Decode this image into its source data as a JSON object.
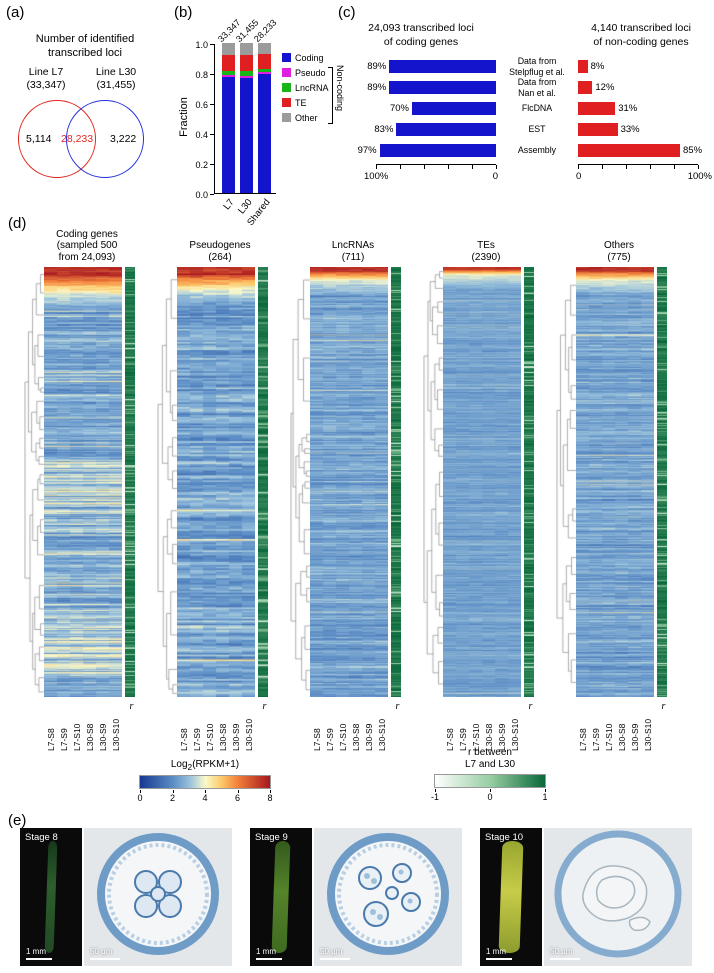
{
  "panel_labels": {
    "a": "(a)",
    "b": "(b)",
    "c": "(c)",
    "d": "(d)",
    "e": "(e)"
  },
  "panel_a": {
    "title": "Number of identified\ntranscribed loci",
    "left_name": "Line L7",
    "left_total": "(33,347)",
    "right_name": "Line L30",
    "right_total": "(31,455)",
    "left_only": "5,114",
    "overlap": "28,233",
    "right_only": "3,222"
  },
  "panel_b": {
    "ylabel": "Fraction",
    "yticks": [
      "1.0",
      "0.8",
      "0.6",
      "0.4",
      "0.2",
      "0.0"
    ],
    "totals": [
      "33,347",
      "31,455",
      "28,233"
    ],
    "xcats": [
      "L7",
      "L30",
      "Shared"
    ],
    "noncoding": "Non-coding"
  },
  "panel_c": {
    "left_title": "24,093 transcribed loci\nof coding genes",
    "right_title": "4,140 transcribed loci\nof non-coding genes",
    "left_axis_left": "100%",
    "left_axis_right": "0",
    "right_axis_left": "0",
    "right_axis_right": "100%"
  },
  "panel_d": {
    "heatmaps": [
      {
        "title": "Coding genes\n(sampled 500\nfrom 24,093)"
      },
      {
        "title": "Pseudogenes\n(264)"
      },
      {
        "title": "LncRNAs\n(711)"
      },
      {
        "title": "TEs\n(2390)"
      },
      {
        "title": "Others\n(775)"
      }
    ],
    "r_label": "r",
    "expr_scale": {
      "prefix": "Log",
      "sub": "2",
      "suffix": "(RPKM+1)",
      "ticks": [
        "0",
        "2",
        "4",
        "6",
        "8"
      ]
    },
    "r_scale": {
      "label": "r between\nL7 and L30",
      "ticks": [
        "-1",
        "0",
        "1"
      ]
    }
  },
  "panel_e": {
    "stages": [
      {
        "name": "Stage 8",
        "spike_scale": "1 mm",
        "section_scale": "50 µm"
      },
      {
        "name": "Stage 9",
        "spike_scale": "1 mm",
        "section_scale": "50 µm"
      },
      {
        "name": "Stage 10",
        "spike_scale": "1 mm",
        "section_scale": "50 µm"
      }
    ]
  },
  "chart_data": [
    {
      "type": "venn",
      "title": "Number of identified transcribed loci",
      "sets": [
        {
          "label": "Line L7",
          "total": 33347
        },
        {
          "label": "Line L30",
          "total": 31455
        }
      ],
      "left_only": 5114,
      "overlap": 28233,
      "right_only": 3222
    },
    {
      "type": "bar",
      "subtype": "stacked-fraction",
      "categories": [
        "L7",
        "L30",
        "Shared"
      ],
      "totals": [
        33347,
        31455,
        28233
      ],
      "ylabel": "Fraction",
      "ylim": [
        0,
        1
      ],
      "series": [
        {
          "name": "Coding",
          "color": "#1414cc",
          "values": [
            0.775,
            0.77,
            0.795
          ]
        },
        {
          "name": "Pseudo",
          "color": "#e01ee0",
          "values": [
            0.012,
            0.012,
            0.009
          ]
        },
        {
          "name": "LncRNA",
          "color": "#17b517",
          "values": [
            0.028,
            0.03,
            0.026
          ]
        },
        {
          "name": "TE",
          "color": "#e02020",
          "values": [
            0.105,
            0.108,
            0.1
          ]
        },
        {
          "name": "Other",
          "color": "#9b9b9b",
          "values": [
            0.08,
            0.08,
            0.07
          ]
        }
      ],
      "noncoding_series": [
        "Pseudo",
        "LncRNA",
        "TE",
        "Other"
      ]
    },
    {
      "type": "bar",
      "orientation": "horizontal",
      "title": "24,093 transcribed loci of coding genes",
      "categories": [
        "Data from\nStelpflug et al.",
        "Data from\nNan et al.",
        "FlcDNA",
        "EST",
        "Assembly"
      ],
      "values": [
        89,
        89,
        70,
        83,
        97
      ],
      "unit": "%",
      "color": "#1414cc",
      "axis_range": [
        100,
        0
      ]
    },
    {
      "type": "bar",
      "orientation": "horizontal",
      "title": "4,140 transcribed loci of non-coding genes",
      "categories": [
        "Data from\nStelpflug et al.",
        "Data from\nNan et al.",
        "FlcDNA",
        "EST",
        "Assembly"
      ],
      "values": [
        8,
        12,
        31,
        33,
        85
      ],
      "unit": "%",
      "color": "#e02020",
      "axis_range": [
        0,
        100
      ]
    },
    {
      "type": "heatmap",
      "title": "Coding genes (sampled 500 from 24,093)",
      "rows": 500,
      "columns": [
        "L7-S8",
        "L7-S9",
        "L7-S10",
        "L30-S8",
        "L30-S9",
        "L30-S10"
      ],
      "value_scale": {
        "label": "Log2(RPKM+1)",
        "min": 0,
        "max": 8
      },
      "annotation": {
        "label": "r",
        "description": "r between L7 and L30",
        "min": -1,
        "max": 1
      },
      "pattern": {
        "hot_top_fraction": 0.06,
        "warm_row_fraction": 0.3,
        "warm_bands": [
          [
            0.45,
            0.62
          ],
          [
            0.78,
            0.95
          ]
        ]
      }
    },
    {
      "type": "heatmap",
      "title": "Pseudogenes (264)",
      "rows": 264,
      "columns": [
        "L7-S8",
        "L7-S9",
        "L7-S10",
        "L30-S8",
        "L30-S9",
        "L30-S10"
      ],
      "value_scale": {
        "label": "Log2(RPKM+1)",
        "min": 0,
        "max": 8
      },
      "annotation": {
        "label": "r",
        "description": "r between L7 and L30",
        "min": -1,
        "max": 1
      },
      "pattern": {
        "hot_top_fraction": 0.05,
        "warm_row_fraction": 0.12,
        "warm_bands": []
      }
    },
    {
      "type": "heatmap",
      "title": "LncRNAs (711)",
      "rows": 711,
      "columns": [
        "L7-S8",
        "L7-S9",
        "L7-S10",
        "L30-S8",
        "L30-S9",
        "L30-S10"
      ],
      "value_scale": {
        "label": "Log2(RPKM+1)",
        "min": 0,
        "max": 8
      },
      "annotation": {
        "label": "r",
        "description": "r between L7 and L30",
        "min": -1,
        "max": 1
      },
      "pattern": {
        "hot_top_fraction": 0.03,
        "warm_row_fraction": 0.08,
        "warm_bands": []
      }
    },
    {
      "type": "heatmap",
      "title": "TEs (2390)",
      "rows": 2390,
      "columns": [
        "L7-S8",
        "L7-S9",
        "L7-S10",
        "L30-S8",
        "L30-S9",
        "L30-S10"
      ],
      "value_scale": {
        "label": "Log2(RPKM+1)",
        "min": 0,
        "max": 8
      },
      "annotation": {
        "label": "r",
        "description": "r between L7 and L30",
        "min": -1,
        "max": 1
      },
      "pattern": {
        "hot_top_fraction": 0.018,
        "warm_row_fraction": 0.06,
        "warm_bands": []
      }
    },
    {
      "type": "heatmap",
      "title": "Others (775)",
      "rows": 775,
      "columns": [
        "L7-S8",
        "L7-S9",
        "L7-S10",
        "L30-S8",
        "L30-S9",
        "L30-S10"
      ],
      "value_scale": {
        "label": "Log2(RPKM+1)",
        "min": 0,
        "max": 8
      },
      "annotation": {
        "label": "r",
        "description": "r between L7 and L30",
        "min": -1,
        "max": 1
      },
      "pattern": {
        "hot_top_fraction": 0.03,
        "warm_row_fraction": 0.1,
        "warm_bands": []
      }
    }
  ]
}
